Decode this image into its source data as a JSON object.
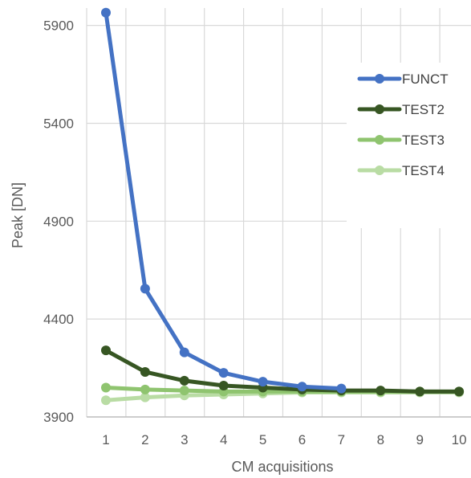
{
  "chart_data": {
    "type": "line",
    "title": "",
    "xlabel": "CM acquisitions",
    "ylabel": "Peak [DN]",
    "x": [
      1,
      2,
      3,
      4,
      5,
      6,
      7,
      8,
      9,
      10
    ],
    "x_tick_labels": [
      "1",
      "2",
      "3",
      "4",
      "5",
      "6",
      "7",
      "8",
      "9",
      "10"
    ],
    "y_ticks": [
      3900,
      4400,
      4900,
      5400,
      5900
    ],
    "y_tick_labels": [
      "3900",
      "4400",
      "4900",
      "5400",
      "5900"
    ],
    "ylim": [
      3900,
      5960
    ],
    "grid": true,
    "legend_position": "right",
    "series": [
      {
        "name": "FUNCT",
        "color": "#4472c4",
        "values": [
          5965,
          4555,
          4230,
          4125,
          4080,
          4055,
          4045,
          null,
          null,
          null
        ]
      },
      {
        "name": "TEST2",
        "color": "#375623",
        "values": [
          4240,
          4130,
          4085,
          4060,
          4050,
          4040,
          4035,
          4035,
          4030,
          4030
        ]
      },
      {
        "name": "TEST3",
        "color": "#8fc46f",
        "values": [
          4050,
          4040,
          4035,
          4030,
          4030,
          4030,
          4030,
          4030,
          4030,
          4030
        ]
      },
      {
        "name": "TEST4",
        "color": "#b9dca4",
        "values": [
          3985,
          4000,
          4010,
          4015,
          4020,
          4025,
          4025,
          4025,
          4025,
          4025
        ]
      }
    ]
  }
}
